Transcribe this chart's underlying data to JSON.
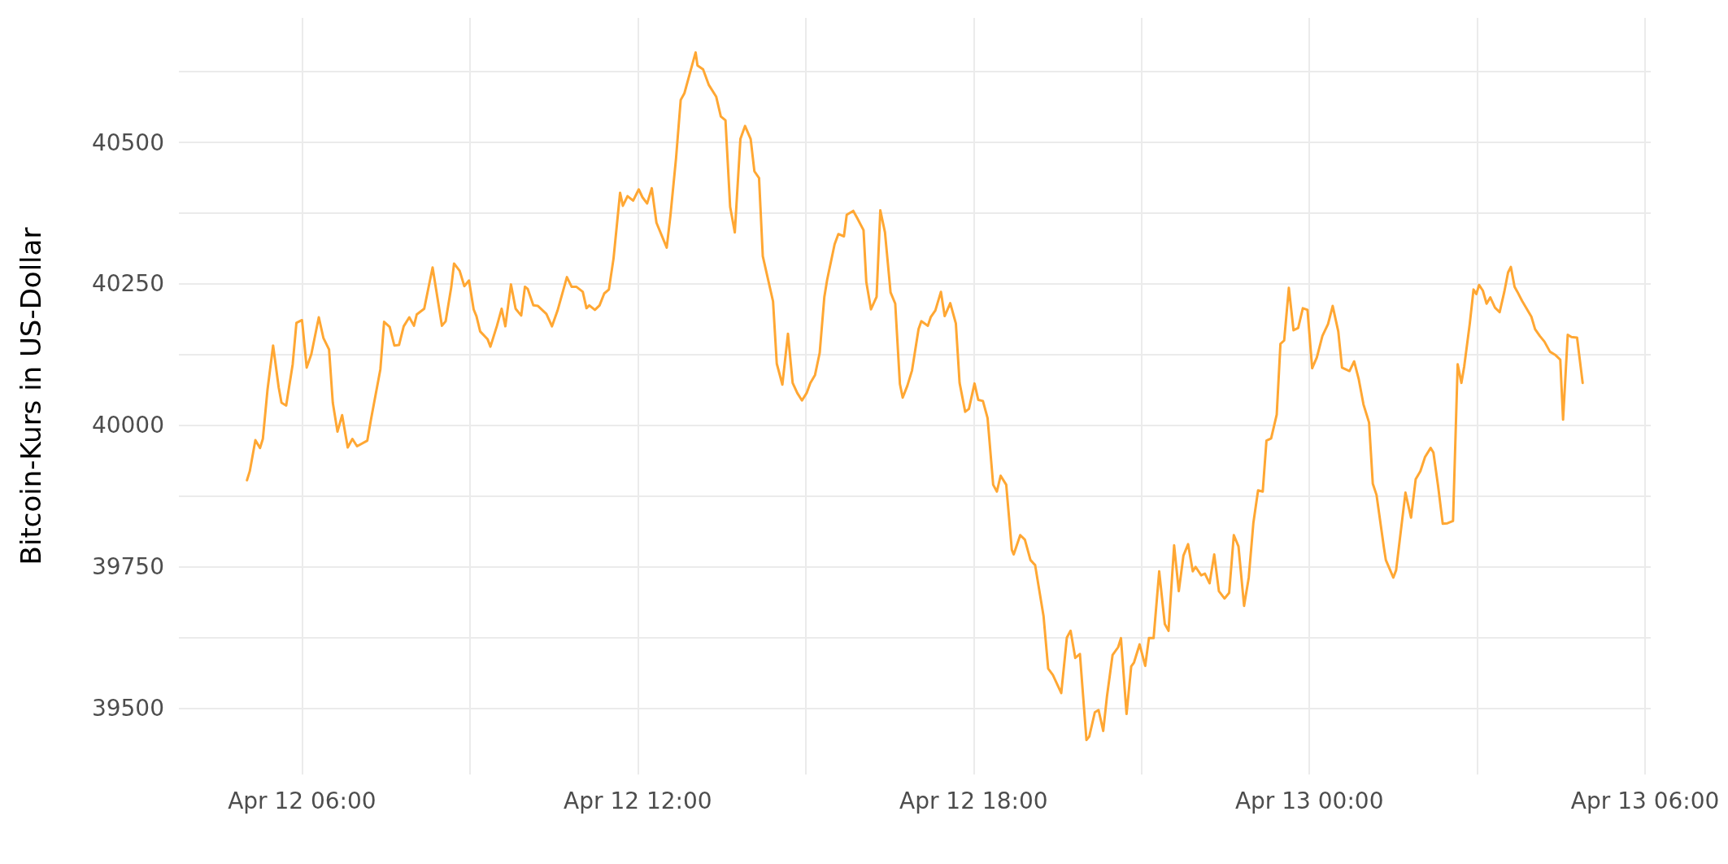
{
  "chart_data": {
    "type": "line",
    "ylabel": "Bitcoin-Kurs in US-Dollar",
    "xlim": [
      "--04-12T03:48",
      "--04-13T06:06"
    ],
    "xticks": [
      {
        "value": "--04-12T06:00",
        "label": "Apr 12 06:00"
      },
      {
        "value": "--04-12T09:00",
        "label": null
      },
      {
        "value": "--04-12T12:00",
        "label": "Apr 12 12:00"
      },
      {
        "value": "--04-12T15:00",
        "label": null
      },
      {
        "value": "--04-12T18:00",
        "label": "Apr 12 18:00"
      },
      {
        "value": "--04-12T21:00",
        "label": null
      },
      {
        "value": "--04-13T00:00",
        "label": "Apr 13 00:00"
      },
      {
        "value": "--04-13T03:00",
        "label": null
      },
      {
        "value": "--04-13T06:00",
        "label": "Apr 13 06:00"
      }
    ],
    "ylim": [
      39383,
      40720
    ],
    "yticks": [
      39500,
      {
        "value": 39625,
        "label": null
      },
      39750,
      {
        "value": 39875,
        "label": null
      },
      40000,
      {
        "value": 40125,
        "label": null
      },
      40250,
      {
        "value": 40375,
        "label": null
      },
      40500,
      {
        "value": 40625,
        "label": null
      }
    ],
    "grid": true,
    "marker": "none",
    "line_style": "solid",
    "series": [
      {
        "color": "#ffa733",
        "x": [
          "--04-12T05:01",
          "--04-12T05:04",
          "--04-12T05:10",
          "--04-12T05:15",
          "--04-12T05:18",
          "--04-12T05:23",
          "--04-12T05:29",
          "--04-12T05:35",
          "--04-12T05:38",
          "--04-12T05:43",
          "--04-12T05:50",
          "--04-12T05:54",
          "--04-12T06:00",
          "--04-12T06:05",
          "--04-12T06:10",
          "--04-12T06:18",
          "--04-12T06:23",
          "--04-12T06:29",
          "--04-12T06:33",
          "--04-12T06:38",
          "--04-12T06:43",
          "--04-12T06:49",
          "--04-12T06:54",
          "--04-12T06:59",
          "--04-12T07:10",
          "--04-12T07:14",
          "--04-12T07:24",
          "--04-12T07:28",
          "--04-12T07:34",
          "--04-12T07:39",
          "--04-12T07:44",
          "--04-12T07:49",
          "--04-12T07:55",
          "--04-12T08:00",
          "--04-12T08:03",
          "--04-12T08:11",
          "--04-12T08:20",
          "--04-12T08:30",
          "--04-12T08:34",
          "--04-12T08:40",
          "--04-12T08:43",
          "--04-12T08:49",
          "--04-12T08:54",
          "--04-12T08:59",
          "--04-12T09:04",
          "--04-12T09:07",
          "--04-12T09:11",
          "--04-12T09:19",
          "--04-12T09:22",
          "--04-12T09:29",
          "--04-12T09:34",
          "--04-12T09:38",
          "--04-12T09:44",
          "--04-12T09:49",
          "--04-12T09:55",
          "--04-12T09:59",
          "--04-12T10:02",
          "--04-12T10:08",
          "--04-12T10:13",
          "--04-12T10:22",
          "--04-12T10:28",
          "--04-12T10:34",
          "--04-12T10:44",
          "--04-12T10:49",
          "--04-12T10:54",
          "--04-12T11:01",
          "--04-12T11:05",
          "--04-12T11:08",
          "--04-12T11:14",
          "--04-12T11:19",
          "--04-12T11:24",
          "--04-12T11:29",
          "--04-12T11:34",
          "--04-12T11:41",
          "--04-12T11:44",
          "--04-12T11:49",
          "--04-12T11:55",
          "--04-12T12:01",
          "--04-12T12:05",
          "--04-12T12:10",
          "--04-12T12:15",
          "--04-12T12:20",
          "--04-12T12:31",
          "--04-12T12:35",
          "--04-12T12:41",
          "--04-12T12:46",
          "--04-12T12:50",
          "--04-12T12:56",
          "--04-12T13:02",
          "--04-12T13:04",
          "--04-12T13:10",
          "--04-12T13:16",
          "--04-12T13:24",
          "--04-12T13:29",
          "--04-12T13:34",
          "--04-12T13:39",
          "--04-12T13:44",
          "--04-12T13:50",
          "--04-12T13:55",
          "--04-12T14:01",
          "--04-12T14:05",
          "--04-12T14:10",
          "--04-12T14:14",
          "--04-12T14:25",
          "--04-12T14:29",
          "--04-12T14:35",
          "--04-12T14:41",
          "--04-12T14:46",
          "--04-12T14:51",
          "--04-12T14:56",
          "--04-12T15:01",
          "--04-12T15:05",
          "--04-12T15:10",
          "--04-12T15:15",
          "--04-12T15:20",
          "--04-12T15:23",
          "--04-12T15:31",
          "--04-12T15:35",
          "--04-12T15:41",
          "--04-12T15:44",
          "--04-12T15:51",
          "--04-12T15:55",
          "--04-12T16:02",
          "--04-12T16:05",
          "--04-12T16:10",
          "--04-12T16:16",
          "--04-12T16:20",
          "--04-12T16:25",
          "--04-12T16:31",
          "--04-12T16:36",
          "--04-12T16:41",
          "--04-12T16:44",
          "--04-12T16:49",
          "--04-12T16:54",
          "--04-12T17:01",
          "--04-12T17:04",
          "--04-12T17:11",
          "--04-12T17:14",
          "--04-12T17:19",
          "--04-12T17:25",
          "--04-12T17:29",
          "--04-12T17:35",
          "--04-12T17:41",
          "--04-12T17:45",
          "--04-12T17:51",
          "--04-12T17:55",
          "--04-12T18:01",
          "--04-12T18:05",
          "--04-12T18:10",
          "--04-12T18:15",
          "--04-12T18:21",
          "--04-12T18:25",
          "--04-12T18:29",
          "--04-12T18:35",
          "--04-12T18:41",
          "--04-12T18:43",
          "--04-12T18:50",
          "--04-12T18:55",
          "--04-12T19:01",
          "--04-12T19:06",
          "--04-12T19:15",
          "--04-12T19:20",
          "--04-12T19:25",
          "--04-12T19:34",
          "--04-12T19:40",
          "--04-12T19:44",
          "--04-12T19:49",
          "--04-12T19:54",
          "--04-12T20:01",
          "--04-12T20:04",
          "--04-12T20:10",
          "--04-12T20:14",
          "--04-12T20:19",
          "--04-12T20:23",
          "--04-12T20:29",
          "--04-12T20:35",
          "--04-12T20:38",
          "--04-12T20:44",
          "--04-12T20:49",
          "--04-12T20:52",
          "--04-12T20:58",
          "--04-12T21:04",
          "--04-12T21:08",
          "--04-12T21:13",
          "--04-12T21:19",
          "--04-12T21:25",
          "--04-12T21:29",
          "--04-12T21:35",
          "--04-12T21:40",
          "--04-12T21:45",
          "--04-12T21:50",
          "--04-12T21:55",
          "--04-12T21:58",
          "--04-12T22:04",
          "--04-12T22:08",
          "--04-12T22:13",
          "--04-12T22:18",
          "--04-12T22:23",
          "--04-12T22:29",
          "--04-12T22:34",
          "--04-12T22:39",
          "--04-12T22:44",
          "--04-12T22:50",
          "--04-12T22:55",
          "--04-12T23:00",
          "--04-12T23:05",
          "--04-12T23:10",
          "--04-12T23:14",
          "--04-12T23:19",
          "--04-12T23:25",
          "--04-12T23:29",
          "--04-12T23:33",
          "--04-12T23:38",
          "--04-12T23:43",
          "--04-12T23:48",
          "--04-12T23:53",
          "--04-12T23:58",
          "--04-13T00:03",
          "--04-13T00:08",
          "--04-13T00:14",
          "--04-13T00:20",
          "--04-13T00:25",
          "--04-13T00:31",
          "--04-13T00:35",
          "--04-13T00:43",
          "--04-13T00:48",
          "--04-13T00:53",
          "--04-13T00:58",
          "--04-13T01:04",
          "--04-13T01:08",
          "--04-13T01:12",
          "--04-13T01:20",
          "--04-13T01:22",
          "--04-13T01:30",
          "--04-13T01:33",
          "--04-13T01:43",
          "--04-13T01:49",
          "--04-13T01:54",
          "--04-13T01:59",
          "--04-13T02:04",
          "--04-13T02:10",
          "--04-13T02:13",
          "--04-13T02:18",
          "--04-13T02:23",
          "--04-13T02:28",
          "--04-13T02:34",
          "--04-13T02:39",
          "--04-13T02:43",
          "--04-13T02:46",
          "--04-13T02:52",
          "--04-13T02:56",
          "--04-13T02:59",
          "--04-13T03:02",
          "--04-13T03:06",
          "--04-13T03:10",
          "--04-13T03:14",
          "--04-13T03:19",
          "--04-13T03:24",
          "--04-13T03:29",
          "--04-13T03:33",
          "--04-13T03:36",
          "--04-13T03:40",
          "--04-13T03:43",
          "--04-13T03:48",
          "--04-13T03:53",
          "--04-13T03:58",
          "--04-13T04:02",
          "--04-13T04:07",
          "--04-13T04:12",
          "--04-13T04:18",
          "--04-13T04:24",
          "--04-13T04:29",
          "--04-13T04:32",
          "--04-13T04:37",
          "--04-13T04:41",
          "--04-13T04:47",
          "--04-13T04:53"
        ],
        "values": [
          39903,
          39919,
          39974,
          39960,
          39976,
          40063,
          40141,
          40067,
          40040,
          40035,
          40108,
          40181,
          40186,
          40102,
          40126,
          40191,
          40154,
          40134,
          40040,
          39989,
          40018,
          39961,
          39976,
          39963,
          39973,
          40011,
          40099,
          40183,
          40174,
          40141,
          40142,
          40175,
          40191,
          40176,
          40196,
          40206,
          40279,
          40176,
          40184,
          40244,
          40286,
          40273,
          40246,
          40256,
          40205,
          40193,
          40166,
          40152,
          40139,
          40176,
          40206,
          40175,
          40249,
          40206,
          40194,
          40245,
          40241,
          40212,
          40211,
          40197,
          40175,
          40203,
          40262,
          40245,
          40245,
          40236,
          40207,
          40212,
          40204,
          40212,
          40233,
          40240,
          40295,
          40411,
          40388,
          40405,
          40397,
          40417,
          40403,
          40392,
          40419,
          40358,
          40314,
          40371,
          40472,
          40575,
          40587,
          40623,
          40659,
          40636,
          40629,
          40602,
          40581,
          40546,
          40539,
          40386,
          40341,
          40506,
          40529,
          40506,
          40449,
          40437,
          40299,
          40219,
          40109,
          40072,
          40162,
          40075,
          40057,
          40044,
          40057,
          40075,
          40089,
          40128,
          40227,
          40257,
          40320,
          40338,
          40334,
          40372,
          40379,
          40367,
          40345,
          40253,
          40205,
          40227,
          40380,
          40341,
          40235,
          40215,
          40073,
          40049,
          40070,
          40097,
          40170,
          40184,
          40176,
          40191,
          40203,
          40236,
          40193,
          40216,
          40180,
          40075,
          40024,
          40029,
          40074,
          40045,
          40043,
          40013,
          39895,
          39883,
          39911,
          39895,
          39780,
          39772,
          39806,
          39798,
          39762,
          39753,
          39663,
          39570,
          39559,
          39527,
          39625,
          39637,
          39589,
          39596,
          39444,
          39450,
          39493,
          39497,
          39460,
          39521,
          39594,
          39608,
          39624,
          39490,
          39574,
          39581,
          39613,
          39575,
          39624,
          39624,
          39742,
          39649,
          39637,
          39788,
          39707,
          39770,
          39790,
          39742,
          39750,
          39735,
          39738,
          39721,
          39772,
          39707,
          39694,
          39704,
          39806,
          39786,
          39681,
          39731,
          39828,
          39885,
          39883,
          39973,
          39977,
          40019,
          40144,
          40150,
          40243,
          40168,
          40172,
          40207,
          40204,
          40101,
          40120,
          40158,
          40179,
          40211,
          40166,
          40102,
          40096,
          40113,
          40081,
          40037,
          40005,
          39897,
          39877,
          39783,
          39762,
          39731,
          39744,
          39881,
          39837,
          39905,
          39919,
          39944,
          39960,
          39952,
          39893,
          39826,
          39827,
          39831,
          40108,
          40075,
          40104,
          40180,
          40240,
          40232,
          40248,
          40238,
          40215,
          40226,
          40208,
          40200,
          40236,
          40270,
          40280,
          40245,
          40236,
          40220,
          40206,
          40192,
          40170,
          40158,
          40148,
          40130,
          40124,
          40116,
          40010,
          40160,
          40156,
          40155,
          40075
        ]
      }
    ]
  }
}
